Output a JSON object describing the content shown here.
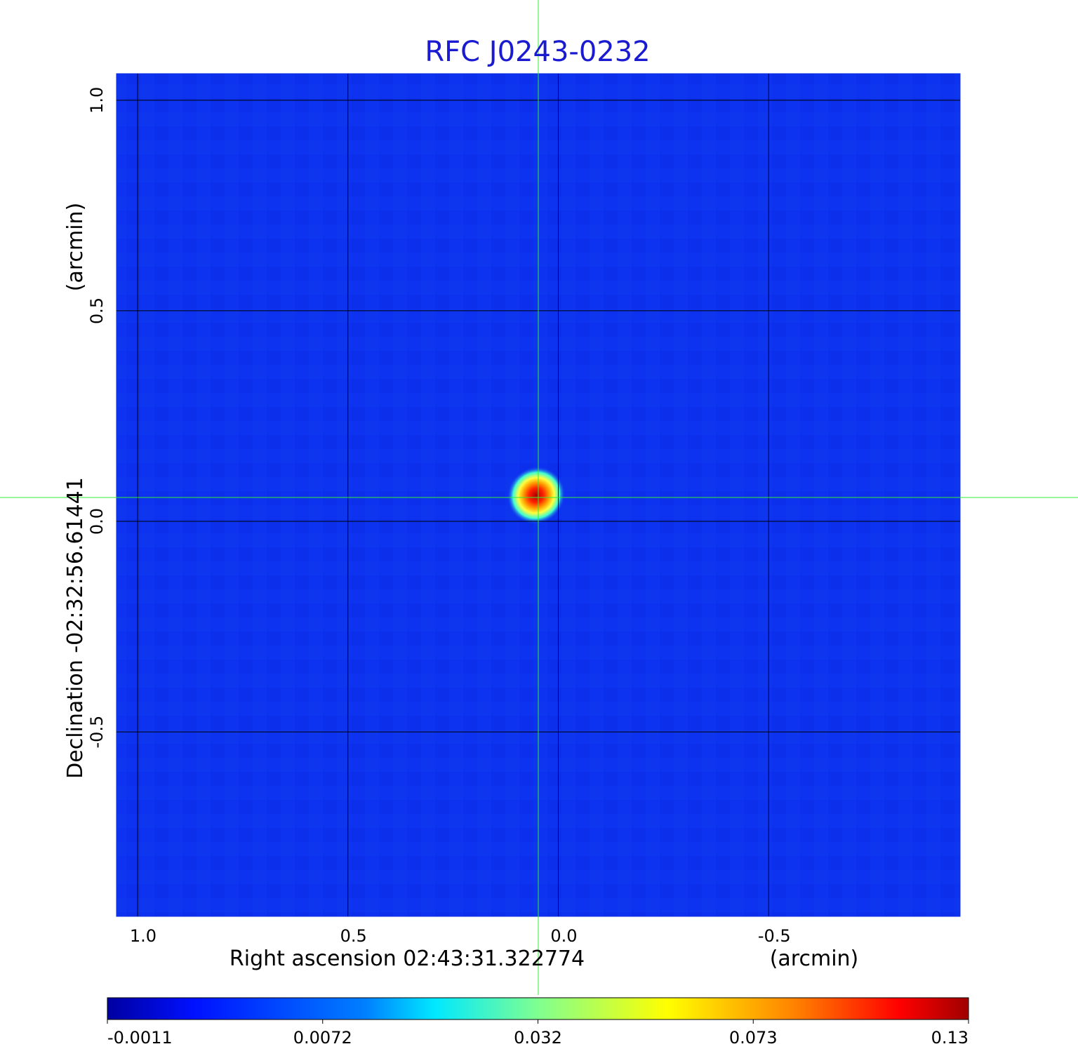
{
  "chart_data": {
    "type": "image",
    "title": "RFC J0243-0232",
    "xlabel": "Right ascension  02:43:31.322774",
    "xunit": "(arcmin)",
    "ylabel": "Declination  -02:32:56.61441",
    "yunit": "(arcmin)",
    "xlim": [
      1.05,
      -0.955
    ],
    "ylim": [
      -0.938,
      1.063
    ],
    "xticks": [
      {
        "value": 1,
        "label": "1.0"
      },
      0.5,
      {
        "value": 0,
        "label": "0.0"
      },
      -0.5
    ],
    "yticks": [
      {
        "value": 1,
        "label": "1.0"
      },
      0.5,
      {
        "value": 0,
        "label": "0.0"
      },
      -0.5
    ],
    "grid": true,
    "colormap": "jet",
    "colorbar_ticks": [
      -0.0011,
      0.0072,
      0.032,
      0.073,
      0.13
    ]
  }
}
